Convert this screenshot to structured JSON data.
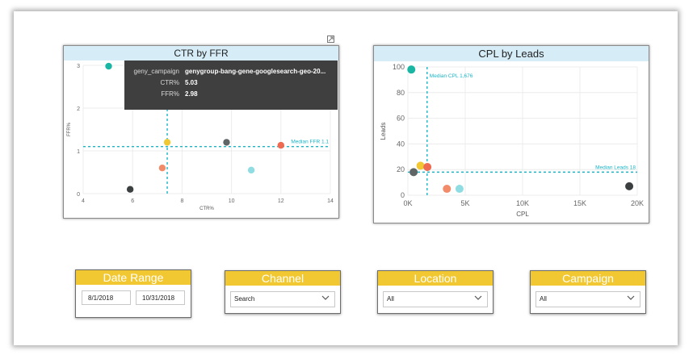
{
  "ctr_chart": {
    "title": "CTR by FFR",
    "chart_data": {
      "type": "scatter",
      "title": "CTR by FFR",
      "xlabel": "CTR%",
      "ylabel": "FFR%",
      "xlim": [
        4,
        14
      ],
      "ylim": [
        0,
        3
      ],
      "x_ticks": [
        "4",
        "6",
        "8",
        "10",
        "12",
        "14"
      ],
      "y_ticks": [
        "0",
        "1",
        "2",
        "3"
      ],
      "points": [
        {
          "x": 5.03,
          "y": 2.98,
          "color": "#1ab6a4"
        },
        {
          "x": 7.4,
          "y": 1.2,
          "color": "#f2c832"
        },
        {
          "x": 7.2,
          "y": 0.6,
          "color": "#f28b6a"
        },
        {
          "x": 5.9,
          "y": 0.1,
          "color": "#3b3f40"
        },
        {
          "x": 9.8,
          "y": 1.2,
          "color": "#606566"
        },
        {
          "x": 10.8,
          "y": 0.55,
          "color": "#8fdde3"
        },
        {
          "x": 12.0,
          "y": 1.13,
          "color": "#ee6a50"
        }
      ],
      "median_ctr": 7.4,
      "median_ffr": 1.1,
      "median_ffr_label": "Median FFR 1.1",
      "grid": true
    }
  },
  "tooltip": {
    "rows": [
      {
        "key": "geny_campaign",
        "value": "genygroup-bang-gene-googlesearch-geo-20..."
      },
      {
        "key": "CTR%",
        "value": "5.03"
      },
      {
        "key": "FFR%",
        "value": "2.98"
      }
    ]
  },
  "cpl_chart": {
    "title": "CPL by Leads",
    "chart_data": {
      "type": "scatter",
      "title": "CPL by Leads",
      "xlabel": "CPL",
      "ylabel": "Leads",
      "xlim": [
        0,
        20000
      ],
      "ylim": [
        0,
        100
      ],
      "x_ticks": [
        "0K",
        "5K",
        "10K",
        "15K",
        "20K"
      ],
      "y_ticks": [
        "0",
        "20",
        "40",
        "60",
        "80",
        "100"
      ],
      "points": [
        {
          "x": 300,
          "y": 98,
          "color": "#1ab6a4"
        },
        {
          "x": 1100,
          "y": 23,
          "color": "#f2c832"
        },
        {
          "x": 1700,
          "y": 22,
          "color": "#ee6a50"
        },
        {
          "x": 500,
          "y": 18,
          "color": "#606566"
        },
        {
          "x": 3400,
          "y": 5,
          "color": "#f28b6a"
        },
        {
          "x": 4500,
          "y": 5,
          "color": "#8fdde3"
        },
        {
          "x": 19300,
          "y": 7,
          "color": "#3b3f40"
        }
      ],
      "median_cpl": 1676,
      "median_cpl_label": "Median CPL 1,676",
      "median_leads": 18,
      "median_leads_label": "Median Leads 18",
      "grid": true
    }
  },
  "slicers": {
    "date_range": {
      "title": "Date Range",
      "start": "8/1/2018",
      "end": "10/31/2018"
    },
    "channel": {
      "title": "Channel",
      "value": "Search"
    },
    "location": {
      "title": "Location",
      "value": "All"
    },
    "campaign": {
      "title": "Campaign",
      "value": "All"
    }
  },
  "colors": {
    "title_bg": "#d6edf8",
    "slicer_header": "#f2c832",
    "median_line": "#1ab6c8"
  }
}
